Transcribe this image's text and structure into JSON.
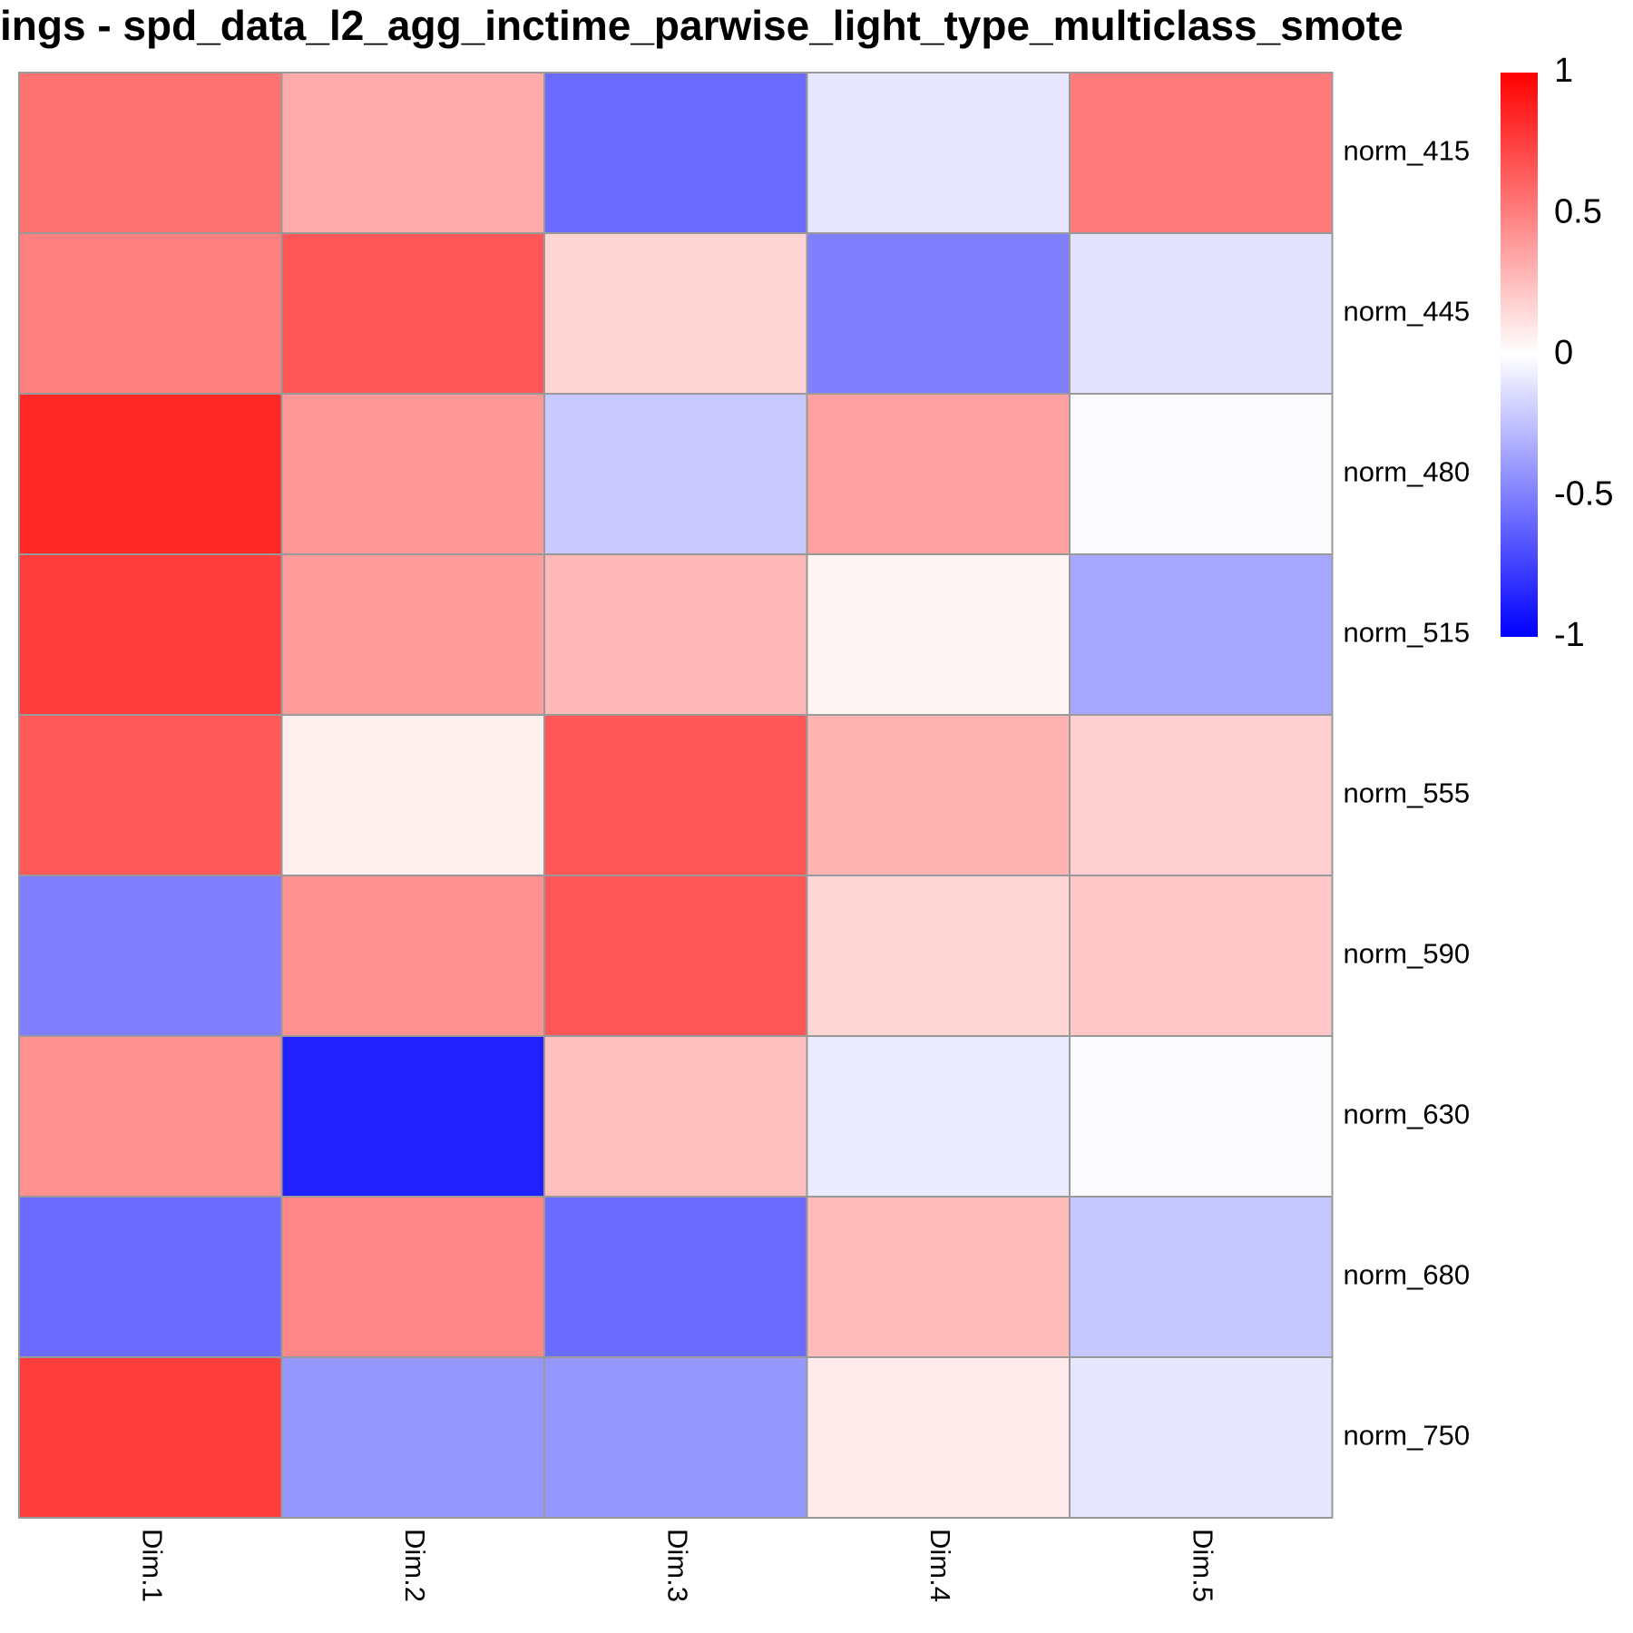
{
  "chart_data": {
    "type": "heatmap",
    "title": "ings - spd_data_l2_agg_inctime_parwise_light_type_multiclass_smote",
    "rows": [
      "norm_415",
      "norm_445",
      "norm_480",
      "norm_515",
      "norm_555",
      "norm_590",
      "norm_630",
      "norm_680",
      "norm_750"
    ],
    "columns": [
      "Dim.1",
      "Dim.2",
      "Dim.3",
      "Dim.4",
      "Dim.5"
    ],
    "values": [
      [
        0.55,
        0.33,
        -0.58,
        -0.1,
        0.52
      ],
      [
        0.5,
        0.66,
        0.17,
        -0.5,
        -0.11
      ],
      [
        0.85,
        0.4,
        -0.21,
        0.37,
        -0.01
      ],
      [
        0.76,
        0.39,
        0.28,
        0.04,
        -0.35
      ],
      [
        0.65,
        0.06,
        0.66,
        0.3,
        0.19
      ],
      [
        -0.5,
        0.43,
        0.66,
        0.16,
        0.22
      ],
      [
        0.43,
        -0.87,
        0.25,
        -0.08,
        -0.01
      ],
      [
        -0.58,
        0.47,
        -0.58,
        0.27,
        -0.22
      ],
      [
        0.76,
        -0.41,
        -0.41,
        0.08,
        -0.1
      ]
    ],
    "color_scale": {
      "min": -1,
      "max": 1,
      "low_color": "#0000ff",
      "mid_color": "#ffffff",
      "high_color": "#ff0000"
    },
    "legend_ticks": [
      {
        "value": 1,
        "label": "1"
      },
      {
        "value": 0.5,
        "label": "0.5"
      },
      {
        "value": 0,
        "label": "0"
      },
      {
        "value": -0.5,
        "label": "-0.5"
      },
      {
        "value": -1,
        "label": "-1"
      }
    ],
    "legend_position": "right",
    "grid_color": "#999999"
  }
}
